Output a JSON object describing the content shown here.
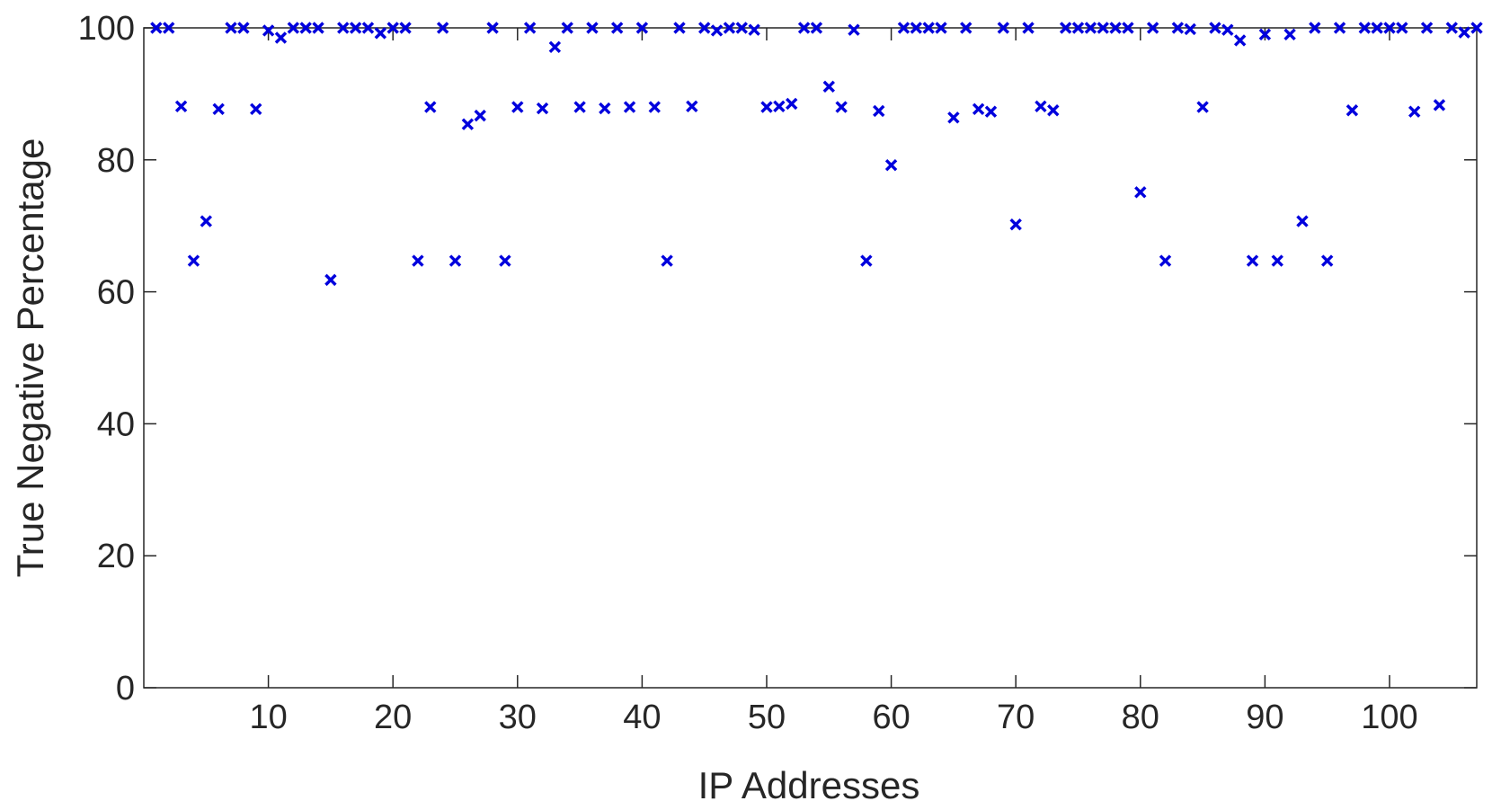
{
  "chart_data": {
    "type": "scatter",
    "title": "",
    "xlabel": "IP Addresses",
    "ylabel": "True Negative Percentage",
    "xlim": [
      0,
      107
    ],
    "ylim": [
      0,
      100
    ],
    "xticks": [
      10,
      20,
      30,
      40,
      50,
      60,
      70,
      80,
      90,
      100
    ],
    "yticks": [
      0,
      20,
      40,
      60,
      80,
      100
    ],
    "grid": false,
    "marker": "x",
    "marker_color": "#0000dd",
    "series": [
      {
        "x": [
          1,
          2,
          3,
          4,
          5,
          6,
          7,
          8,
          9,
          10,
          11,
          12,
          13,
          14,
          15,
          16,
          17,
          18,
          19,
          20,
          21,
          22,
          23,
          24,
          25,
          26,
          27,
          28,
          29,
          30,
          31,
          32,
          33,
          34,
          35,
          36,
          37,
          38,
          39,
          40,
          41,
          42,
          43,
          44,
          45,
          46,
          47,
          48,
          49,
          50,
          51,
          52,
          53,
          54,
          55,
          56,
          57,
          58,
          59,
          60,
          61,
          62,
          63,
          64,
          65,
          66,
          67,
          68,
          69,
          70,
          71,
          72,
          73,
          74,
          75,
          76,
          77,
          78,
          79,
          80,
          81,
          82,
          83,
          84,
          85,
          86,
          87,
          88,
          89,
          90,
          91,
          92,
          93,
          94,
          95,
          96,
          97,
          98,
          99,
          100,
          101,
          102,
          103,
          104,
          105,
          106,
          107
        ],
        "y": [
          100,
          100,
          88.1,
          64.7,
          70.7,
          87.7,
          100,
          100,
          87.7,
          99.6,
          98.5,
          100,
          100,
          100,
          61.8,
          100,
          100,
          100,
          99.2,
          100,
          100,
          64.7,
          88,
          100,
          64.7,
          85.4,
          86.7,
          100,
          64.7,
          88,
          100,
          87.8,
          97.1,
          100,
          88,
          100,
          87.8,
          100,
          88,
          100,
          88,
          64.7,
          100,
          88.1,
          100,
          99.6,
          100,
          100,
          99.7,
          88,
          88.1,
          88.5,
          100,
          100,
          91.1,
          88,
          99.7,
          64.7,
          87.4,
          79.2,
          100,
          100,
          100,
          100,
          86.4,
          100,
          87.7,
          87.3,
          100,
          70.2,
          100,
          88.1,
          87.5,
          100,
          100,
          100,
          100,
          100,
          100,
          75.1,
          100,
          64.7,
          100,
          99.8,
          88,
          100,
          99.7,
          98.1,
          64.7,
          99,
          64.7,
          99,
          70.7,
          100,
          64.7,
          100,
          87.5,
          100,
          100,
          100,
          100,
          87.3,
          100,
          88.3,
          100,
          99.3,
          100
        ]
      }
    ]
  }
}
